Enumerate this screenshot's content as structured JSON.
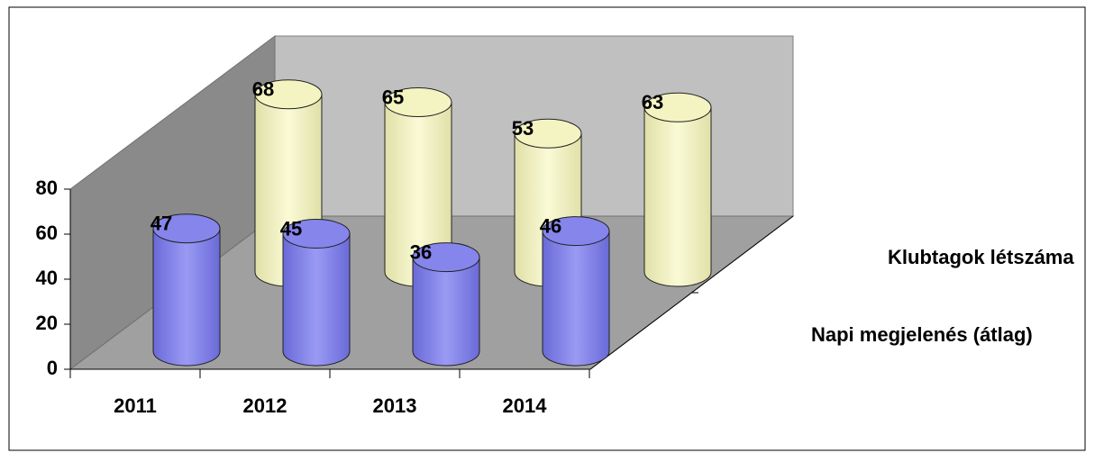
{
  "chart_data": {
    "type": "bar3d-cylinder",
    "categories": [
      "2011",
      "2012",
      "2013",
      "2014"
    ],
    "series": [
      {
        "name": "Napi megjelenés (átlag)",
        "color": "#8585ec",
        "values": [
          47,
          45,
          36,
          46
        ]
      },
      {
        "name": "Klubtagok létszáma",
        "color": "#f4f4c2",
        "values": [
          68,
          65,
          53,
          63
        ]
      }
    ],
    "ylim": [
      0,
      80
    ],
    "yticks": [
      0,
      20,
      40,
      60,
      80
    ]
  }
}
